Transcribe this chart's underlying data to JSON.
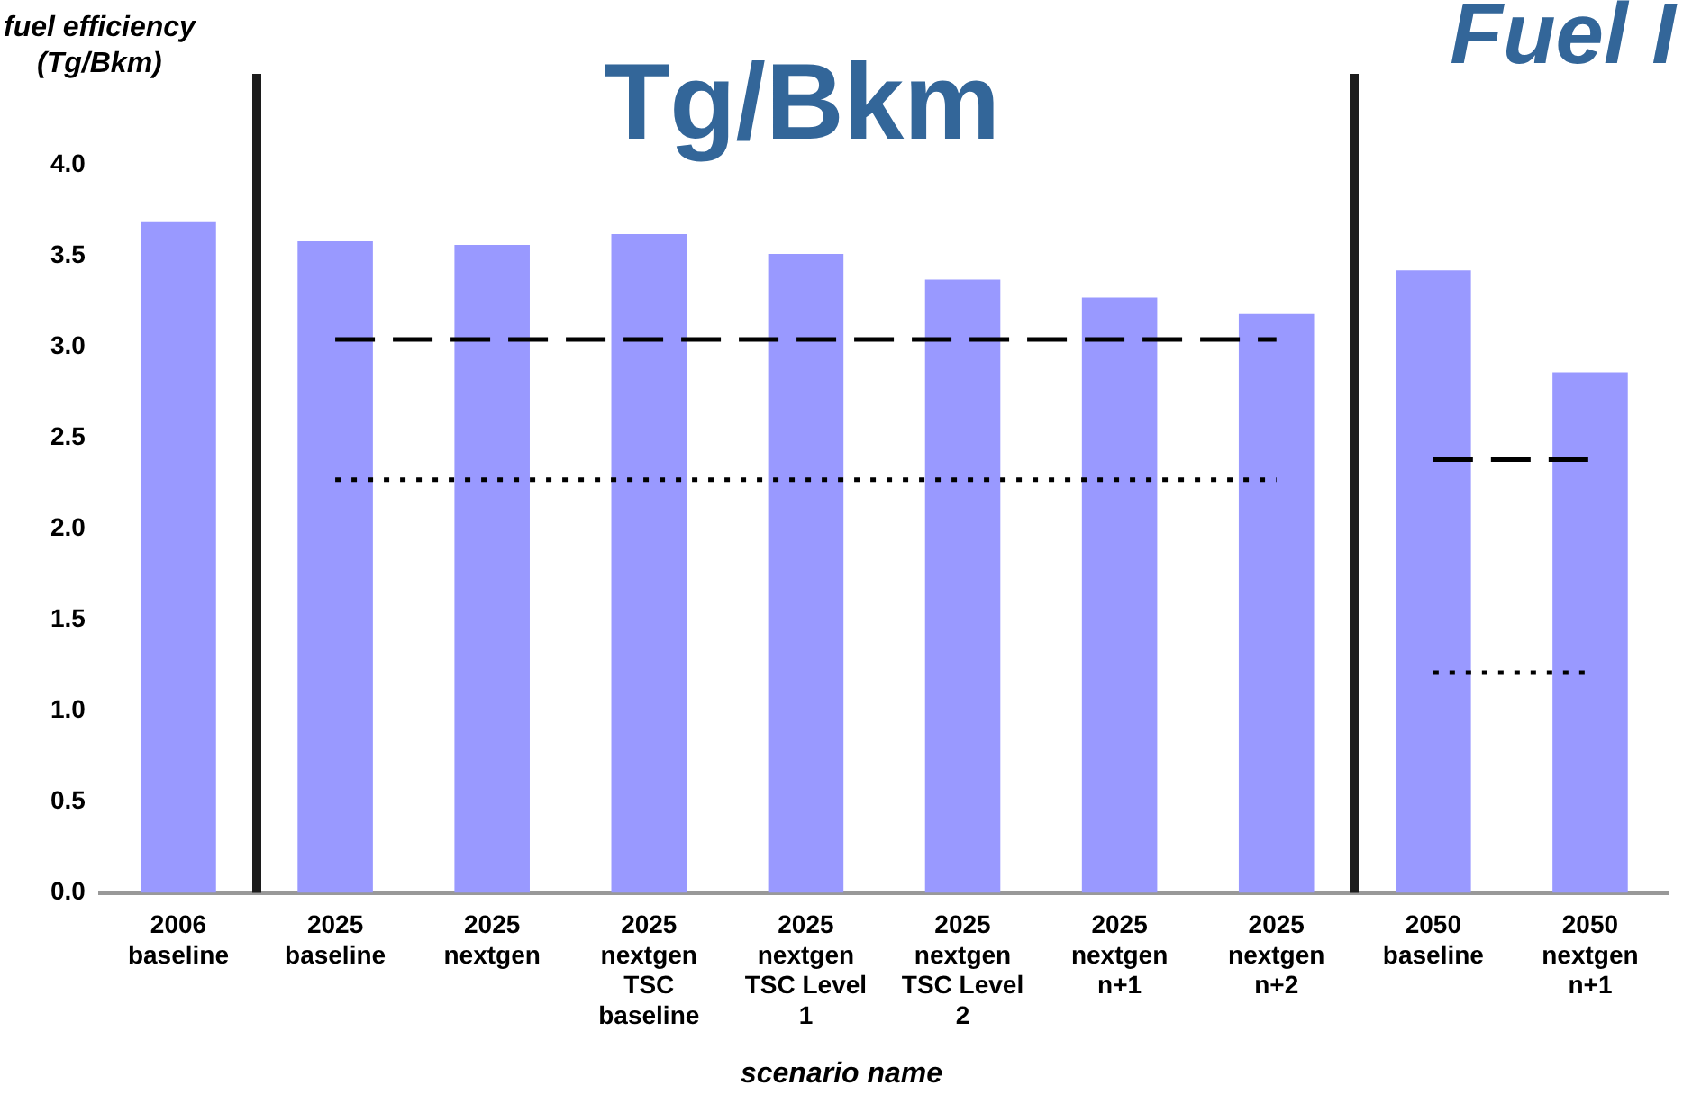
{
  "chart_data": {
    "type": "bar",
    "title": "Tg/Bkm",
    "ylabel": "fuel efficiency\n(Tg/Bkm)",
    "xlabel": "scenario name",
    "annotations": [
      "Fuel I"
    ],
    "categories": [
      "2006\nbaseline",
      "2025\nbaseline",
      "2025\nnextgen",
      "2025\nnextgen\nTSC\nbaseline",
      "2025\nnextgen\nTSC Level\n1",
      "2025\nnextgen\nTSC Level\n2",
      "2025\nnextgen\nn+1",
      "2025\nnextgen\nn+2",
      "2050\nbaseline",
      "2050\nnextgen\nn+1"
    ],
    "series": [
      {
        "color": "#9999ff",
        "values": [
          3.69,
          3.58,
          3.56,
          3.62,
          3.51,
          3.37,
          3.27,
          3.18,
          3.42,
          2.86
        ]
      },
      {
        "type": "line",
        "color": "#000000",
        "line_style": "dashed",
        "values": [
          null,
          3.04,
          3.04,
          3.04,
          3.04,
          3.04,
          3.04,
          3.04,
          null,
          null
        ]
      },
      {
        "type": "line",
        "color": "#000000",
        "line_style": "dotted",
        "values": [
          null,
          2.27,
          2.27,
          2.27,
          2.27,
          2.27,
          2.27,
          2.27,
          null,
          null
        ]
      },
      {
        "type": "line",
        "color": "#000000",
        "line_style": "dashed",
        "values": [
          null,
          null,
          null,
          null,
          null,
          null,
          null,
          null,
          2.38,
          2.38
        ]
      },
      {
        "type": "line",
        "color": "#000000",
        "line_style": "dotted",
        "values": [
          null,
          null,
          null,
          null,
          null,
          null,
          null,
          null,
          1.21,
          1.21
        ]
      }
    ],
    "ylim": [
      0,
      4.5
    ],
    "yticks": [
      {
        "value": 0,
        "label": "0.0"
      },
      {
        "value": 0.5,
        "label": "0.5"
      },
      {
        "value": 1,
        "label": "1.0"
      },
      {
        "value": 1.5,
        "label": "1.5"
      },
      {
        "value": 2,
        "label": "2.0"
      },
      {
        "value": 2.5,
        "label": "2.5"
      },
      {
        "value": 3,
        "label": "3.0"
      },
      {
        "value": 3.5,
        "label": "3.5"
      },
      {
        "value": 4,
        "label": "4.0"
      }
    ],
    "grid": false,
    "legend": false,
    "marker": "none"
  }
}
